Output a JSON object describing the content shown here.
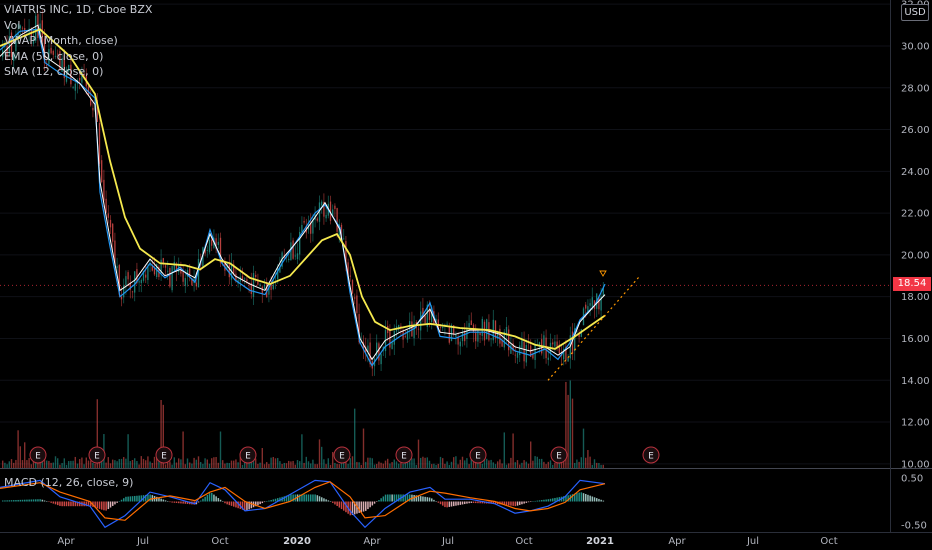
{
  "legend": {
    "symbol": "VIATRIS INC, 1D, Cboe BZX",
    "vol": "Vol",
    "vwap": "VWAP (Month, close)",
    "ema": "EMA (50, close, 0)",
    "sma": "SMA (12, close, 0)"
  },
  "macd_label": "MACD (12, 26, close, 9)",
  "currency": "USD",
  "last_price": "18.54",
  "earnings_marker": "E",
  "colors": {
    "up": "#26a69a",
    "down": "#ef5350",
    "ema": "#f5e94e",
    "sma": "#ffffff",
    "vwap": "#2196f3",
    "macd": "#2962ff",
    "signal": "#ff6d00",
    "trend": "#ff9800"
  },
  "chart_data": {
    "type": "line",
    "title": "VIATRIS INC, 1D, Cboe BZX",
    "price_axis": {
      "ticks": [
        "32.00",
        "30.00",
        "28.00",
        "26.00",
        "24.00",
        "22.00",
        "20.00",
        "18.00",
        "16.00",
        "14.00",
        "12.00",
        "10.00"
      ],
      "ylim": [
        9.8,
        32.2
      ],
      "unit": "USD"
    },
    "time_axis": {
      "ticks": [
        "Apr",
        "Jul",
        "Oct",
        "2020",
        "Apr",
        "Jul",
        "Oct",
        "2021",
        "Apr",
        "Jul",
        "Oct"
      ],
      "bold": [
        "2020",
        "2021"
      ]
    },
    "macd_axis": {
      "ticks": [
        "0.50",
        "-0.50"
      ],
      "ylim": [
        -0.65,
        0.65
      ]
    },
    "series": [
      {
        "name": "EMA (50, close, 0)",
        "points": [
          [
            0,
            30.0
          ],
          [
            40,
            30.8
          ],
          [
            70,
            29.5
          ],
          [
            95,
            27.7
          ],
          [
            110,
            24.5
          ],
          [
            125,
            21.8
          ],
          [
            140,
            20.3
          ],
          [
            160,
            19.6
          ],
          [
            185,
            19.5
          ],
          [
            200,
            19.3
          ],
          [
            215,
            19.8
          ],
          [
            230,
            19.6
          ],
          [
            250,
            18.9
          ],
          [
            270,
            18.6
          ],
          [
            290,
            19.0
          ],
          [
            305,
            19.8
          ],
          [
            322,
            20.7
          ],
          [
            337,
            21.0
          ],
          [
            350,
            20.0
          ],
          [
            362,
            18.0
          ],
          [
            375,
            16.8
          ],
          [
            390,
            16.4
          ],
          [
            410,
            16.6
          ],
          [
            430,
            16.7
          ],
          [
            460,
            16.5
          ],
          [
            490,
            16.4
          ],
          [
            515,
            16.1
          ],
          [
            535,
            15.7
          ],
          [
            555,
            15.5
          ],
          [
            575,
            16.1
          ],
          [
            590,
            16.6
          ],
          [
            605,
            17.1
          ]
        ]
      },
      {
        "name": "SMA (12, close, 0)",
        "points": [
          [
            0,
            29.5
          ],
          [
            20,
            30.5
          ],
          [
            38,
            31.0
          ],
          [
            45,
            29.5
          ],
          [
            60,
            29.0
          ],
          [
            80,
            28.2
          ],
          [
            95,
            27.2
          ],
          [
            100,
            23.5
          ],
          [
            110,
            20.8
          ],
          [
            120,
            18.3
          ],
          [
            135,
            18.8
          ],
          [
            150,
            19.8
          ],
          [
            165,
            19.0
          ],
          [
            180,
            19.3
          ],
          [
            195,
            18.9
          ],
          [
            210,
            21.0
          ],
          [
            222,
            19.8
          ],
          [
            235,
            19.0
          ],
          [
            250,
            18.6
          ],
          [
            265,
            18.3
          ],
          [
            282,
            19.8
          ],
          [
            300,
            20.8
          ],
          [
            315,
            21.8
          ],
          [
            325,
            22.5
          ],
          [
            340,
            21.2
          ],
          [
            350,
            18.5
          ],
          [
            360,
            16.0
          ],
          [
            372,
            15.0
          ],
          [
            385,
            15.9
          ],
          [
            400,
            16.3
          ],
          [
            415,
            16.6
          ],
          [
            430,
            17.4
          ],
          [
            440,
            16.3
          ],
          [
            455,
            16.2
          ],
          [
            470,
            16.4
          ],
          [
            485,
            16.4
          ],
          [
            500,
            16.2
          ],
          [
            515,
            15.6
          ],
          [
            530,
            15.4
          ],
          [
            545,
            15.6
          ],
          [
            558,
            15.2
          ],
          [
            570,
            15.6
          ],
          [
            580,
            16.8
          ],
          [
            595,
            17.6
          ],
          [
            605,
            18.1
          ]
        ]
      },
      {
        "name": "VWAP (Month, close)",
        "points": [
          [
            0,
            29.8
          ],
          [
            20,
            30.7
          ],
          [
            38,
            30.8
          ],
          [
            45,
            29.2
          ],
          [
            60,
            28.7
          ],
          [
            80,
            28.2
          ],
          [
            95,
            27.5
          ],
          [
            100,
            23.0
          ],
          [
            110,
            20.4
          ],
          [
            120,
            18.0
          ],
          [
            135,
            18.6
          ],
          [
            150,
            19.6
          ],
          [
            165,
            18.9
          ],
          [
            180,
            19.4
          ],
          [
            195,
            18.7
          ],
          [
            210,
            21.2
          ],
          [
            222,
            19.6
          ],
          [
            235,
            18.8
          ],
          [
            250,
            18.3
          ],
          [
            265,
            18.1
          ],
          [
            282,
            19.6
          ],
          [
            300,
            20.9
          ],
          [
            315,
            22.0
          ],
          [
            325,
            22.4
          ],
          [
            340,
            21.3
          ],
          [
            350,
            18.2
          ],
          [
            360,
            15.8
          ],
          [
            372,
            14.7
          ],
          [
            385,
            15.6
          ],
          [
            400,
            16.1
          ],
          [
            415,
            16.5
          ],
          [
            430,
            17.7
          ],
          [
            440,
            16.1
          ],
          [
            455,
            16.0
          ],
          [
            470,
            16.3
          ],
          [
            485,
            16.3
          ],
          [
            500,
            16.0
          ],
          [
            515,
            15.4
          ],
          [
            530,
            15.2
          ],
          [
            545,
            15.5
          ],
          [
            558,
            15.0
          ],
          [
            570,
            15.8
          ],
          [
            580,
            16.9
          ],
          [
            595,
            17.6
          ],
          [
            605,
            18.6
          ]
        ]
      },
      {
        "name": "Trend",
        "points": [
          [
            548,
            14.0
          ],
          [
            640,
            19.0
          ]
        ]
      }
    ],
    "macd": {
      "macd_line": [
        [
          0,
          0.3
        ],
        [
          40,
          0.45
        ],
        [
          60,
          0.1
        ],
        [
          90,
          -0.1
        ],
        [
          105,
          -0.55
        ],
        [
          125,
          -0.3
        ],
        [
          150,
          0.2
        ],
        [
          170,
          0.1
        ],
        [
          195,
          -0.05
        ],
        [
          210,
          0.4
        ],
        [
          225,
          0.25
        ],
        [
          245,
          -0.2
        ],
        [
          265,
          -0.15
        ],
        [
          290,
          0.15
        ],
        [
          315,
          0.45
        ],
        [
          330,
          0.42
        ],
        [
          350,
          -0.2
        ],
        [
          365,
          -0.55
        ],
        [
          385,
          -0.15
        ],
        [
          410,
          0.2
        ],
        [
          430,
          0.3
        ],
        [
          445,
          0.05
        ],
        [
          470,
          0.05
        ],
        [
          495,
          -0.05
        ],
        [
          515,
          -0.25
        ],
        [
          530,
          -0.2
        ],
        [
          548,
          -0.1
        ],
        [
          565,
          0.1
        ],
        [
          580,
          0.45
        ],
        [
          605,
          0.38
        ]
      ],
      "signal_line": [
        [
          0,
          0.28
        ],
        [
          40,
          0.4
        ],
        [
          60,
          0.2
        ],
        [
          90,
          0.0
        ],
        [
          105,
          -0.35
        ],
        [
          125,
          -0.4
        ],
        [
          150,
          0.05
        ],
        [
          170,
          0.12
        ],
        [
          195,
          0.02
        ],
        [
          210,
          0.2
        ],
        [
          225,
          0.3
        ],
        [
          245,
          0.0
        ],
        [
          265,
          -0.15
        ],
        [
          290,
          0.0
        ],
        [
          315,
          0.3
        ],
        [
          330,
          0.42
        ],
        [
          350,
          0.1
        ],
        [
          365,
          -0.35
        ],
        [
          385,
          -0.3
        ],
        [
          410,
          0.05
        ],
        [
          430,
          0.22
        ],
        [
          445,
          0.18
        ],
        [
          470,
          0.08
        ],
        [
          495,
          0.0
        ],
        [
          515,
          -0.15
        ],
        [
          530,
          -0.2
        ],
        [
          548,
          -0.15
        ],
        [
          565,
          -0.02
        ],
        [
          580,
          0.25
        ],
        [
          605,
          0.38
        ]
      ]
    }
  }
}
